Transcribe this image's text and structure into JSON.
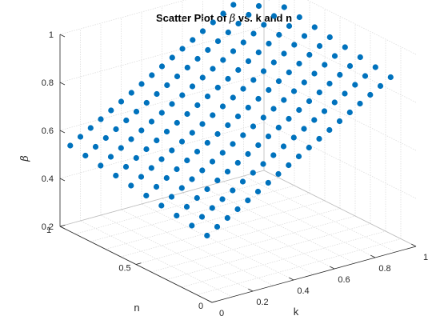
{
  "chart_data": {
    "type": "scatter",
    "title_prefix": "Scatter Plot of ",
    "title_symbol": "β",
    "title_suffix": " vs. k and n",
    "xlabel": "k",
    "ylabel": "n",
    "zlabel": "β",
    "xlim": [
      0,
      1
    ],
    "ylim": [
      0,
      1
    ],
    "zlim": [
      0.2,
      1
    ],
    "x_ticks": [
      "0",
      "0.2",
      "0.4",
      "0.6",
      "0.8",
      "1"
    ],
    "y_ticks": [
      "0",
      "0.5",
      "1"
    ],
    "z_ticks": [
      "0.2",
      "0.4",
      "0.6",
      "0.8",
      "1"
    ],
    "grid": true,
    "marker_color": "#0072BD",
    "k_values": [
      0.05,
      0.1,
      0.15,
      0.2,
      0.25,
      0.3,
      0.35,
      0.4,
      0.45,
      0.5,
      0.55,
      0.6,
      0.65,
      0.7,
      0.75,
      0.8,
      0.85,
      0.9,
      0.95
    ],
    "n_values": [
      0.1,
      0.2,
      0.3,
      0.4,
      0.5,
      0.6,
      0.7,
      0.8,
      0.9,
      1.0
    ],
    "beta_formula": "beta = 0.4 + 0.5*k + 0.1*n"
  }
}
